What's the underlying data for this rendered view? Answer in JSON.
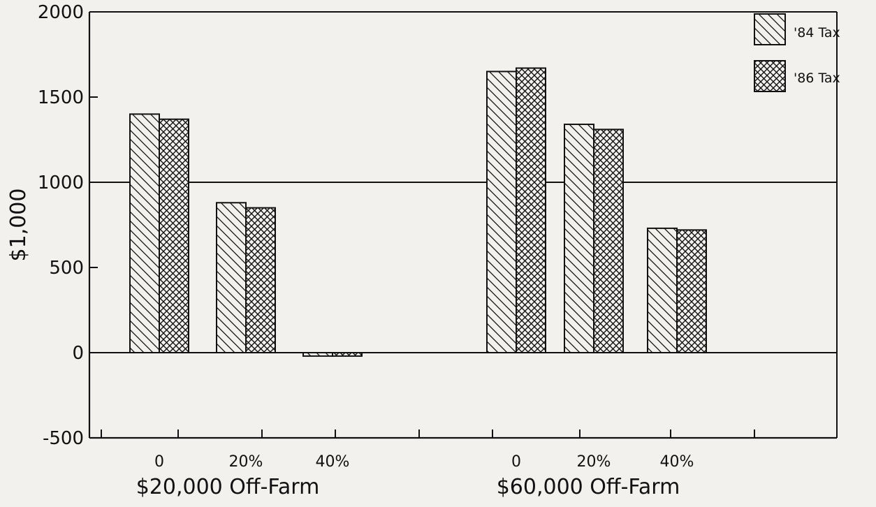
{
  "chart_data": {
    "type": "bar",
    "ylabel": "$1,000",
    "ylim": [
      -500,
      2000
    ],
    "yticks": [
      -500,
      0,
      500,
      1000,
      1500,
      2000
    ],
    "ytick_labels": [
      "-500",
      "0",
      "500",
      "1000",
      "1500",
      "2000"
    ],
    "grid": "horizontal lines at 0 and 1000 only",
    "categories": [
      "0",
      "20%",
      "40%",
      "0",
      "20%",
      "40%"
    ],
    "groups": [
      {
        "label": "$20,000 Off-Farm",
        "categories": [
          "0",
          "20%",
          "40%"
        ]
      },
      {
        "label": "$60,000 Off-Farm",
        "categories": [
          "0",
          "20%",
          "40%"
        ]
      }
    ],
    "series": [
      {
        "name": "'84 Tax",
        "pattern": "diagonal-hatch",
        "values": [
          1400,
          880,
          -20,
          1650,
          1340,
          730
        ]
      },
      {
        "name": "'86 Tax",
        "pattern": "crosshatch",
        "values": [
          1370,
          850,
          -20,
          1670,
          1310,
          720
        ]
      }
    ],
    "legend_position": "top-right"
  },
  "colors": {
    "ink": "#111111",
    "background": "#f2f1ee"
  }
}
